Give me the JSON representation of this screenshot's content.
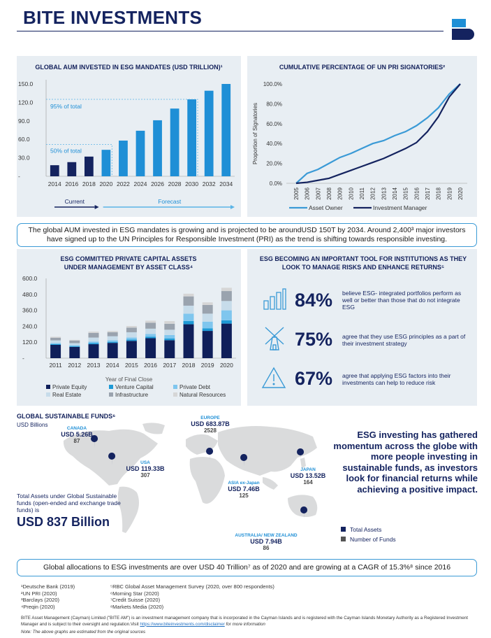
{
  "header": {
    "title": "BITE INVESTMENTS"
  },
  "aum": {
    "title": "GLOBAL AUM INVESTED IN ESG MANDATES (USD TRILLION)¹",
    "callout_95": "95% of total",
    "callout_50": "50% of total",
    "current_label": "Current",
    "forecast_label": "Forecast",
    "yticks": [
      "150.0",
      "120.0",
      "90.0",
      "60.0",
      "30.0",
      "-"
    ]
  },
  "pri": {
    "title": "CUMULATIVE PERCENTAGE OF UN PRI SIGNATORIES²",
    "ylabel": "Proportion of Signatories",
    "yticks": [
      "100.0%",
      "80.0%",
      "60.0%",
      "40.0%",
      "20.0%",
      "0.0%"
    ],
    "legend_owner": "Asset Owner",
    "legend_manager": "Investment Manager"
  },
  "summary1": "The global AUM invested in ESG mandates is growing and is projected to be aroundUSD 150T by 2034. Around 2,400³ major investors have signed up to the UN Principles for Responsible Investment (PRI) as the trend is shifting towards responsible investing.",
  "private": {
    "title": "ESG COMMITTED PRIVATE CAPITAL ASSETS UNDER MANAGEMENT BY ASSET CLASS⁴",
    "xlabel": "Year of Final Close",
    "yticks": [
      "600.0",
      "480.0",
      "360.0",
      "240.0",
      "120.0",
      "-"
    ],
    "legend": [
      "Private Equity",
      "Venture Capital",
      "Private Debt",
      "Real Estate",
      "Infrastructure",
      "Natural Resources"
    ]
  },
  "tool": {
    "title": "ESG BECOMING AN IMPORTANT TOOL FOR INSTITUTIONS AS THEY LOOK TO MANAGE RISKS AND ENHANCE RETURNS⁵",
    "stats": [
      {
        "value": "84%",
        "text": "believe ESG- integrated portfolios perform as well or better than those that do not integrate ESG"
      },
      {
        "value": "75%",
        "text": "agree that they use ESG principles as a part of their investment strategy"
      },
      {
        "value": "67%",
        "text": "agree that applying ESG factors into their investments can help to reduce risk"
      }
    ]
  },
  "funds": {
    "title": "GLOBAL SUSTAINABLE FUNDS⁶",
    "unit": "USD Billions",
    "total_caption": "Total Assets under Global Sustainable funds (open-ended and exchange trade funds) is",
    "total_value": "USD 837 Billion",
    "regions": {
      "canada": {
        "name": "CANADA",
        "assets": "USD 5.26B",
        "count": "87"
      },
      "europe": {
        "name": "EUROPE",
        "assets": "USD 683.87B",
        "count": "2528"
      },
      "usa": {
        "name": "USA",
        "assets": "USD 119.33B",
        "count": "307"
      },
      "japan": {
        "name": "JAPAN",
        "assets": "USD 13.52B",
        "count": "164"
      },
      "asia": {
        "name": "ASIA ex-Japan",
        "assets": "USD 7.46B",
        "count": "125"
      },
      "anz": {
        "name": "AUSTRALIA/ NEW ZEALAND",
        "assets": "USD 7.94B",
        "count": "86"
      }
    },
    "legend_total": "Total Assets",
    "legend_number": "Number of Funds",
    "quote": "ESG investing has gathered momentum across the globe with more people investing in sustainable funds, as investors look for financial returns while achieving a positive impact."
  },
  "summary2": "Global allocations to ESG investments are over USD 40 Trillion⁷ as of 2020 and are growing at a CAGR of 15.3%⁸ since 2016",
  "footnotes": {
    "col1": [
      "¹Deutsche Bank (2019)",
      "²UN PRI (2020)",
      "³Barclays (2020)",
      "⁴Preqin (2020)"
    ],
    "col2": [
      "⁵RBC Global Asset Management Survey (2020, over 800 respondents)",
      "⁶Morning Star (2020)",
      "⁷Credit Suisse (2020)",
      "⁸Markets Media (2020)"
    ],
    "disclaimer": "BITE Asset Management (Cayman) Limited (\"BITE AM\") is an investment management company that is incorporated in the Cayman Islands and is registered with the Cayman Islands Monetary Authority as a Registered Investment Manager and is subject to their oversight and regulation.Visit",
    "link": "https://www.biteinvestments.com/disclaimer",
    "disclaimer_tail": "for more information",
    "note": "Note: The above graphs are estimated from the original sources"
  },
  "colors": {
    "navy": "#14235f",
    "blue": "#1f8fd6",
    "lightblue": "#5ab4e6",
    "panel": "#e8eef3",
    "pe": "#0f1f5a",
    "vc": "#1e9ad6",
    "pd": "#7fc6ee",
    "re": "#c7dcea",
    "infra": "#9aa3ae",
    "nr": "#d6d6d6"
  },
  "chart_data": [
    {
      "type": "bar",
      "title": "GLOBAL AUM INVESTED IN ESG MANDATES (USD TRILLION)¹",
      "categories": [
        "2014",
        "2016",
        "2018",
        "2020",
        "2022",
        "2024",
        "2026",
        "2028",
        "2030",
        "2032",
        "2034"
      ],
      "values": [
        18,
        23,
        32,
        43,
        58,
        74,
        91,
        110,
        125,
        139,
        150
      ],
      "ylim": [
        0,
        150
      ],
      "note": "2014–2018 current (navy), 2020–2034 forecast (blue)"
    },
    {
      "type": "line",
      "title": "CUMULATIVE PERCENTAGE OF UN PRI SIGNATORIES²",
      "ylabel": "Proportion of Signatories",
      "x": [
        "2005",
        "2006",
        "2007",
        "2008",
        "2009",
        "2010",
        "2011",
        "2012",
        "2013",
        "2014",
        "2015",
        "2016",
        "2017",
        "2018",
        "2019",
        "2020"
      ],
      "series": [
        {
          "name": "Asset Owner",
          "values": [
            0,
            10,
            14,
            20,
            26,
            30,
            35,
            40,
            43,
            48,
            52,
            58,
            66,
            76,
            90,
            100
          ]
        },
        {
          "name": "Investment Manager",
          "values": [
            0,
            1,
            3,
            5,
            9,
            13,
            17,
            21,
            25,
            30,
            35,
            41,
            52,
            67,
            87,
            100
          ]
        }
      ],
      "ylim": [
        0,
        100
      ]
    },
    {
      "type": "bar",
      "stacked": true,
      "title": "ESG COMMITTED PRIVATE CAPITAL ASSETS UNDER MANAGEMENT BY ASSET CLASS⁴",
      "xlabel": "Year of Final Close",
      "categories": [
        "2011",
        "2012",
        "2013",
        "2014",
        "2015",
        "2016",
        "2017",
        "2018",
        "2019",
        "2020"
      ],
      "series": [
        {
          "name": "Private Equity",
          "values": [
            100,
            85,
            105,
            115,
            130,
            150,
            135,
            255,
            205,
            260
          ]
        },
        {
          "name": "Venture Capital",
          "values": [
            6,
            5,
            8,
            8,
            10,
            12,
            14,
            25,
            20,
            25
          ]
        },
        {
          "name": "Private Debt",
          "values": [
            8,
            8,
            12,
            12,
            15,
            20,
            25,
            55,
            50,
            75
          ]
        },
        {
          "name": "Real Estate",
          "values": [
            20,
            15,
            30,
            30,
            40,
            40,
            40,
            60,
            60,
            70
          ]
        },
        {
          "name": "Infrastructure",
          "values": [
            20,
            20,
            35,
            30,
            35,
            45,
            45,
            70,
            65,
            75
          ]
        },
        {
          "name": "Natural Resources",
          "values": [
            7,
            5,
            10,
            10,
            12,
            15,
            20,
            20,
            20,
            25
          ]
        }
      ],
      "ylim": [
        0,
        600
      ]
    }
  ]
}
